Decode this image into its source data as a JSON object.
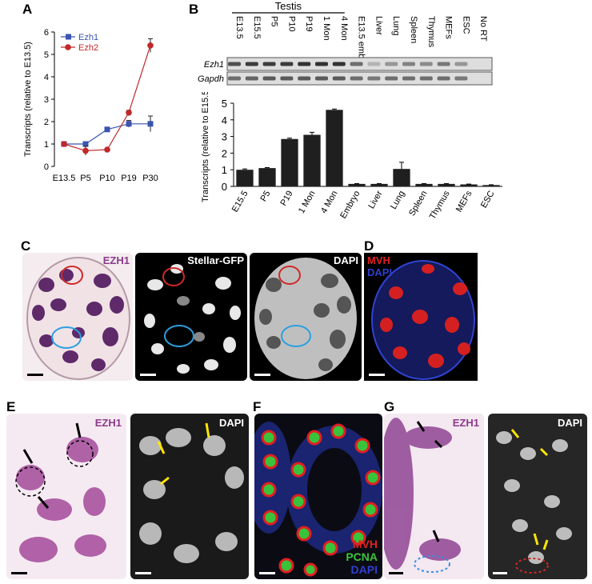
{
  "panels": {
    "a": "A",
    "b": "B",
    "c": "C",
    "d": "D",
    "e": "E",
    "f": "F",
    "g": "G"
  },
  "colors": {
    "ezh1": "#3a55b0",
    "ezh2": "#c0282a",
    "bar": "#1f1f1f",
    "ezh1_stain": "#8c3a8c",
    "mvh": "#e02020",
    "pcna": "#39c639",
    "dapi_blue": "#2f3fd0",
    "outline_cyan": "#3aa8e0",
    "arrow_yellow": "#ffe600"
  },
  "chart_data": [
    {
      "type": "line",
      "ylabel": "Transcripts (relative to E13.5)",
      "categories": [
        "E13.5",
        "P5",
        "P10",
        "P19",
        "P30"
      ],
      "ylim": [
        0,
        6
      ],
      "yticks": [
        0,
        1,
        2,
        3,
        4,
        5,
        6
      ],
      "series": [
        {
          "name": "Ezh1",
          "values": [
            1.0,
            1.0,
            1.65,
            1.9,
            1.9
          ],
          "errors": [
            0.05,
            0.1,
            0.05,
            0.15,
            0.35
          ]
        },
        {
          "name": "Ezh2",
          "values": [
            1.0,
            0.7,
            0.75,
            2.4,
            5.4
          ],
          "errors": [
            0.05,
            0.2,
            0.05,
            0.1,
            0.3
          ]
        }
      ]
    },
    {
      "type": "gel",
      "group_label": "Testis",
      "lanes": [
        "E13.5",
        "E15.5",
        "P5",
        "P10",
        "P19",
        "1 Mon",
        "4 Mon",
        "E13.5 embryo",
        "Liver",
        "Lung",
        "Spleen",
        "Thymus",
        "MEFs",
        "ESC",
        "No RT"
      ],
      "rows": [
        {
          "name": "Ezh1",
          "intensity": [
            0.75,
            0.85,
            0.85,
            0.85,
            0.9,
            0.9,
            0.9,
            0.6,
            0.25,
            0.4,
            0.5,
            0.45,
            0.55,
            0.4,
            0.0
          ]
        },
        {
          "name": "Gapdh",
          "intensity": [
            0.6,
            0.65,
            0.7,
            0.7,
            0.7,
            0.7,
            0.7,
            0.6,
            0.55,
            0.6,
            0.6,
            0.6,
            0.6,
            0.55,
            0.0
          ]
        }
      ]
    },
    {
      "type": "bar",
      "ylabel": "Transcripts (relative to E15.5)",
      "categories": [
        "E15.5",
        "P5",
        "P19",
        "1 Mon",
        "4 Mon",
        "Embryo",
        "Liver",
        "Lung",
        "Spleen",
        "Thymus",
        "MEFs",
        "ESC"
      ],
      "values": [
        1.0,
        1.1,
        2.85,
        3.1,
        4.6,
        0.15,
        0.15,
        1.05,
        0.15,
        0.15,
        0.12,
        0.08
      ],
      "errors": [
        0.05,
        0.03,
        0.05,
        0.15,
        0.05,
        0.02,
        0.02,
        0.4,
        0.02,
        0.02,
        0.02,
        0.02
      ],
      "ylim": [
        0,
        5
      ],
      "yticks": [
        0,
        1,
        2,
        3,
        4,
        5
      ]
    }
  ],
  "micro": {
    "c1": "EZH1",
    "c2": "Stellar-GFP",
    "c3": "DAPI",
    "d_mvh": "MVH",
    "d_dapi": "DAPI",
    "e1": "EZH1",
    "e2": "DAPI",
    "f_mvh": "MVH",
    "f_pcna": "PCNA",
    "f_dapi": "DAPI",
    "g1": "EZH1",
    "g2": "DAPI"
  }
}
